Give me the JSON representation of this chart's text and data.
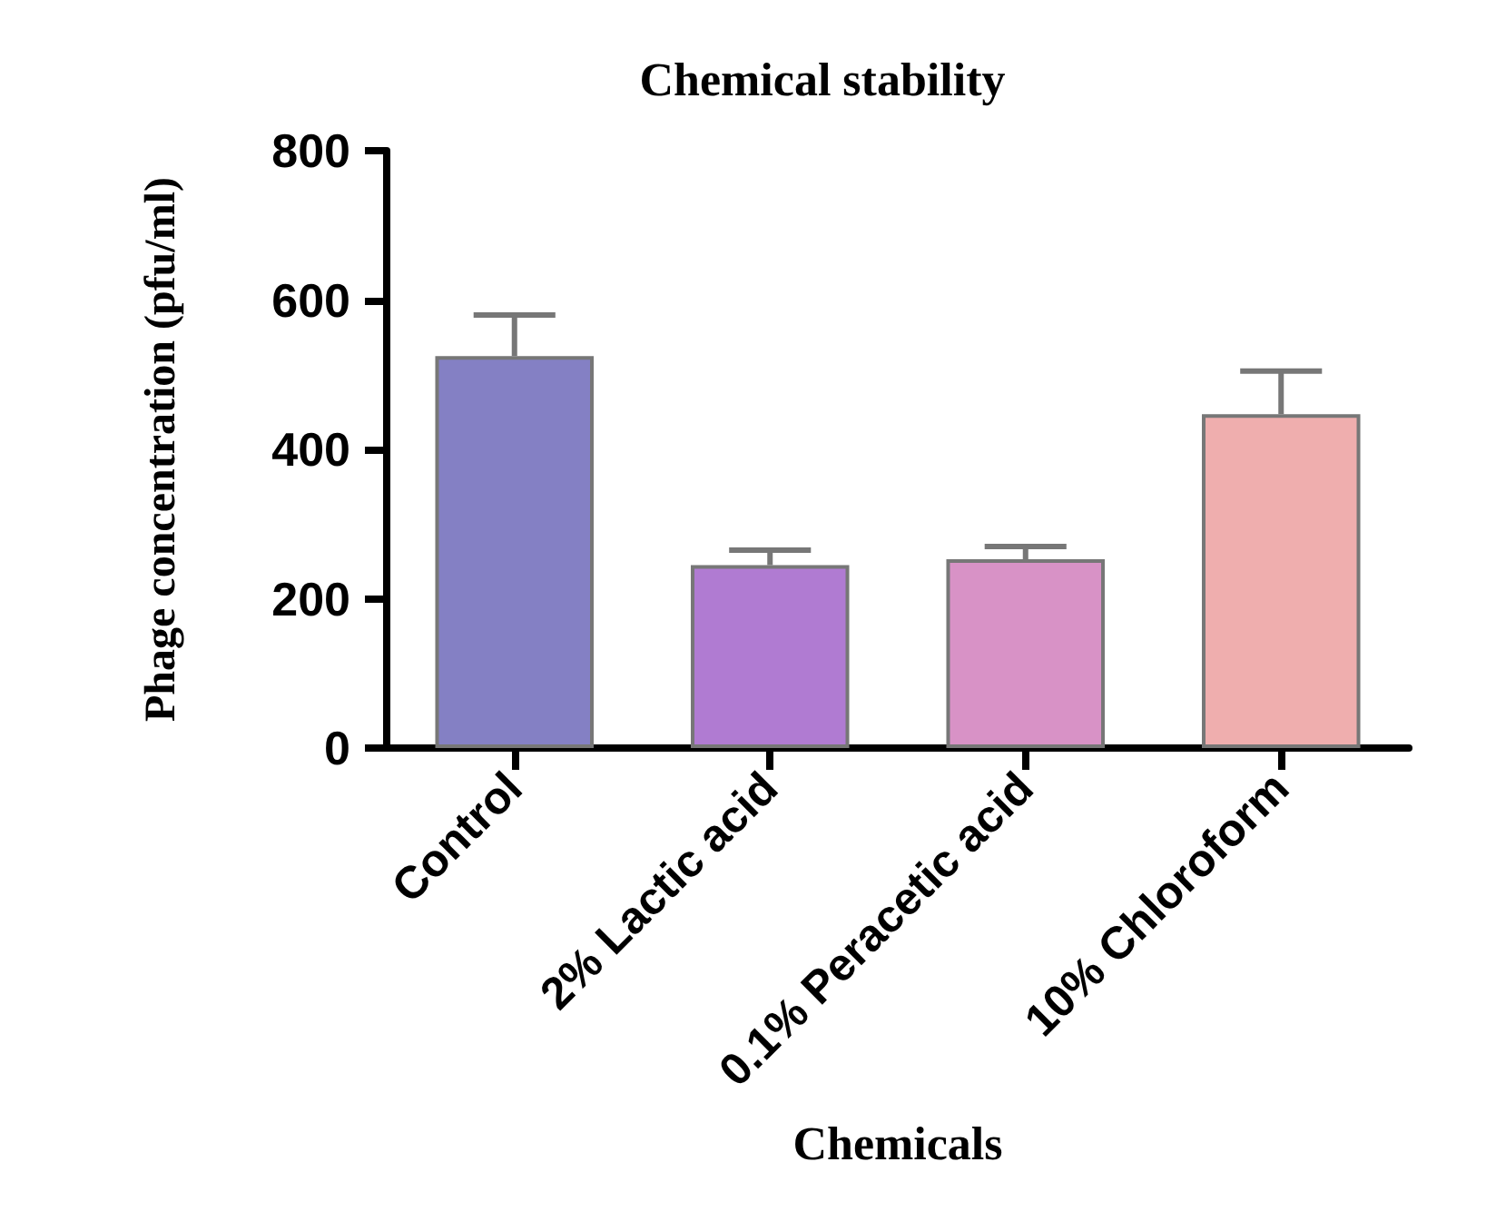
{
  "chart_data": {
    "type": "bar",
    "title": "Chemical stability",
    "xlabel": "Chemicals",
    "ylabel": "Phage concentration (pfu/ml)",
    "categories": [
      "Control",
      "2% Lactic acid",
      "0.1% Peracetic acid",
      "10% Chloroform"
    ],
    "values": [
      525,
      245,
      253,
      447
    ],
    "colors": [
      "#8480c4",
      "#b07bd2",
      "#d892c6",
      "#efaeae"
    ],
    "errors": [
      [
        525,
        580
      ],
      [
        245,
        265
      ],
      [
        253,
        270
      ],
      [
        447,
        505
      ]
    ],
    "ylim": [
      0,
      800
    ],
    "yticks": [
      0,
      200,
      400,
      600,
      800
    ],
    "grid": false
  }
}
